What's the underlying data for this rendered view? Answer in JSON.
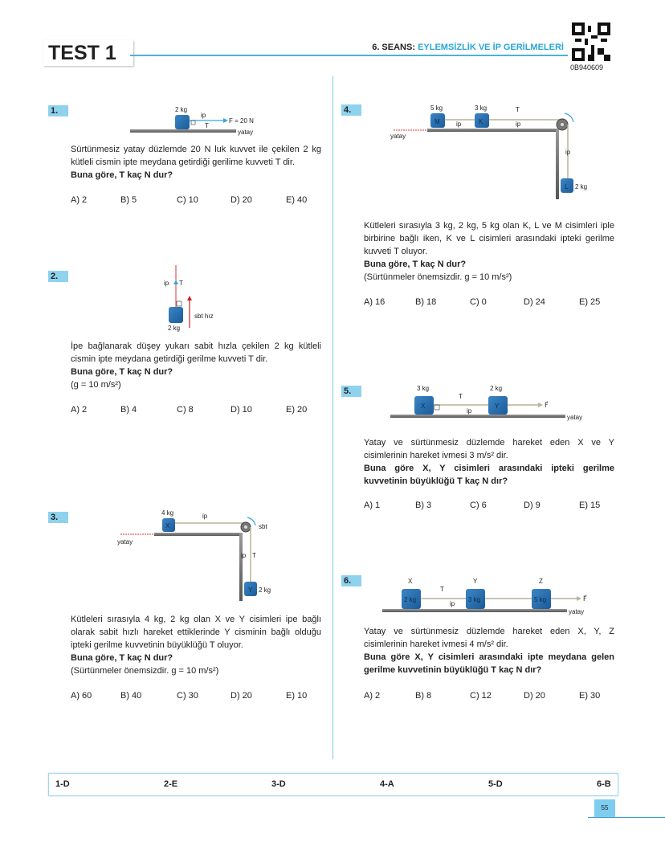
{
  "header": {
    "test_title": "TEST 1",
    "seans_prefix": "6. SEANS: ",
    "seans_title": "EYLEMSİZLİK VE İP GERİLMELERİ",
    "qr_code_id": "0B940609",
    "accent_color": "#2aa6d6"
  },
  "questions": [
    {
      "number": "1.",
      "diagram": {
        "mass": "2 kg",
        "rope": "ip",
        "force": "F = 20 N",
        "tension": "T",
        "surface": "yatay"
      },
      "text": "Sürtünmesiz yatay düzlemde 20 N luk kuvvet ile çekilen 2 kg kütleli cismin ipte meydana getirdiği gerilime kuvveti T dir.",
      "question": "Buna göre, T kaç N dur?",
      "note": "",
      "options": [
        "A) 2",
        "B) 5",
        "C) 10",
        "D) 20",
        "E) 40"
      ]
    },
    {
      "number": "2.",
      "diagram": {
        "mass": "2 kg",
        "rope": "ip",
        "tension": "T",
        "velocity": "sbt hız"
      },
      "text": "İpe bağlanarak düşey yukarı sabit hızla çekilen 2 kg kütleli cismin ipte meydana getirdiği gerilme kuvveti T dir.",
      "question": "Buna göre, T kaç N dur?",
      "note": "(g = 10 m/s²)",
      "options": [
        "A) 2",
        "B) 4",
        "C) 8",
        "D) 10",
        "E) 20"
      ]
    },
    {
      "number": "3.",
      "diagram": {
        "mass_x": "4 kg",
        "label_x": "X",
        "rope": "ip",
        "rotation": "sbt",
        "surface": "yatay",
        "rope2": "ip",
        "tension": "T",
        "label_y": "Y",
        "mass_y": "2 kg"
      },
      "text": "Kütleleri sırasıyla 4 kg, 2 kg olan X ve Y cisimleri ipe bağlı olarak sabit hızlı hareket ettiklerinde Y cisminin bağlı olduğu ipteki gerilme kuvvetinin büyüklüğü T oluyor.",
      "question": "Buna göre, T kaç N dur?",
      "note": "(Sürtünmeler önemsizdir. g = 10 m/s²)",
      "options": [
        "A) 60",
        "B) 40",
        "C) 30",
        "D) 20",
        "E) 10"
      ]
    },
    {
      "number": "4.",
      "diagram": {
        "mass_m": "5 kg",
        "label_m": "M",
        "mass_k": "3 kg",
        "label_k": "K",
        "tension": "T",
        "rope": "ip",
        "surface": "yatay",
        "label_l": "L",
        "mass_l": "2 kg"
      },
      "text": "Kütleleri sırasıyla 3 kg, 2 kg, 5 kg olan K, L ve M cisimleri iple birbirine bağlı iken, K ve L cisimleri arasındaki ipteki gerilme kuvveti T oluyor.",
      "question": "Buna göre, T kaç N dur?",
      "note": "(Sürtünmeler önemsizdir. g = 10 m/s²)",
      "options": [
        "A) 16",
        "B) 18",
        "C) 0",
        "D) 24",
        "E) 25"
      ]
    },
    {
      "number": "5.",
      "diagram": {
        "mass_x": "3 kg",
        "label_x": "X",
        "tension": "T",
        "rope": "ip",
        "mass_y": "2 kg",
        "label_y": "Y",
        "force": "F⃗",
        "surface": "yatay"
      },
      "text": "Yatay ve sürtünmesiz düzlemde hareket eden X ve Y cisimlerinin hareket ivmesi 3 m/s² dir.",
      "question": "Buna göre X, Y cisimleri arasındaki ipteki gerilme kuvvetinin büyüklüğü T kaç N dır?",
      "note": "",
      "options": [
        "A) 1",
        "B) 3",
        "C) 6",
        "D) 9",
        "E) 15"
      ]
    },
    {
      "number": "6.",
      "diagram": {
        "label_x": "X",
        "label_y": "Y",
        "label_z": "Z",
        "tension": "T",
        "rope": "ip",
        "mass_x": "2 kg",
        "mass_y": "3 kg",
        "mass_z": "5 kg",
        "force": "F⃗",
        "surface": "yatay"
      },
      "text": "Yatay ve sürtünmesiz düzlemde hareket eden X, Y, Z cisimlerinin hareket ivmesi 4 m/s² dir.",
      "question": "Buna göre X, Y cisimleri arasındaki ipte meydana gelen gerilme kuvvetinin büyüklüğü T kaç N dır?",
      "note": "",
      "options": [
        "A) 2",
        "B) 8",
        "C) 12",
        "D) 20",
        "E) 30"
      ]
    }
  ],
  "answer_key": [
    "1-D",
    "2-E",
    "3-D",
    "4-A",
    "5-D",
    "6-B"
  ],
  "page_number": "55"
}
